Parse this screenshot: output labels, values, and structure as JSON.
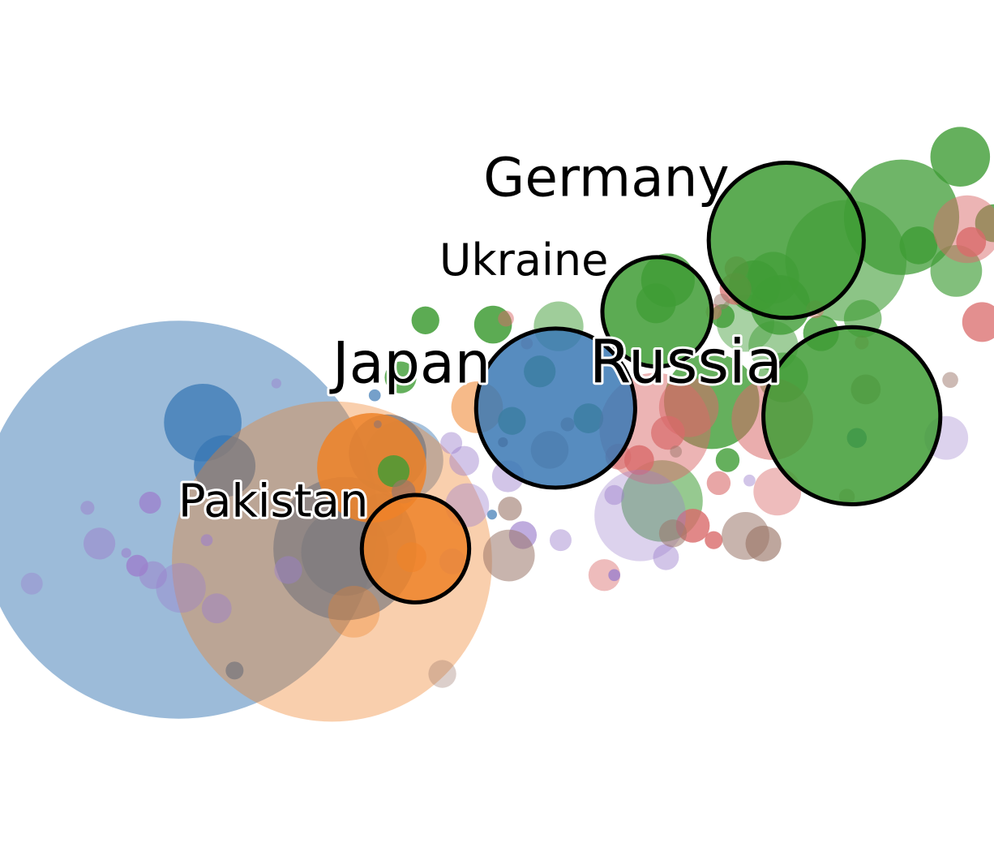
{
  "chart_data": {
    "type": "scatter",
    "title": "",
    "xlabel": "",
    "ylabel": "",
    "grid": false,
    "legend": "none",
    "colors": {
      "blue": "#3a78b4",
      "orange": "#ef8228",
      "green": "#3f9c35",
      "red": "#d96a6a",
      "purple": "#9c7fcc",
      "brown": "#9b7669"
    },
    "xlim": [
      0,
      100
    ],
    "ylim": [
      0,
      100
    ],
    "labels": [
      {
        "text": "Germany",
        "x": 61,
        "y": 77,
        "size": 66,
        "anchor": "middle"
      },
      {
        "text": "Ukraine",
        "x": 52.7,
        "y": 67.7,
        "size": 54,
        "anchor": "middle"
      },
      {
        "text": "Japan",
        "x": 41.4,
        "y": 55.1,
        "size": 70,
        "anchor": "middle"
      },
      {
        "text": "Russia",
        "x": 69,
        "y": 55.1,
        "size": 74,
        "anchor": "middle"
      },
      {
        "text": "Pakistan",
        "x": 27.5,
        "y": 39.4,
        "size": 56,
        "anchor": "middle"
      }
    ],
    "highlighted": [
      {
        "name": "Germany",
        "x": 79.1,
        "y": 71.8,
        "r": 7.8,
        "group": "green"
      },
      {
        "name": "Ukraine",
        "x": 66.1,
        "y": 63.4,
        "r": 5.5,
        "group": "green"
      },
      {
        "name": "Japan",
        "x": 55.9,
        "y": 52.1,
        "r": 8.0,
        "group": "blue"
      },
      {
        "name": "Russia",
        "x": 85.7,
        "y": 51.2,
        "r": 8.9,
        "group": "green"
      },
      {
        "name": "Pakistan",
        "x": 41.8,
        "y": 35.6,
        "r": 5.4,
        "group": "orange"
      }
    ],
    "series": [
      {
        "group": "blue",
        "points": [
          {
            "x": 18.0,
            "y": 39.0,
            "r": 20.0,
            "o": 0.5
          },
          {
            "x": 20.4,
            "y": 50.4,
            "r": 3.9,
            "o": 0.75
          },
          {
            "x": 22.6,
            "y": 45.3,
            "r": 3.1,
            "o": 0.8
          },
          {
            "x": 34.7,
            "y": 35.6,
            "r": 7.2,
            "o": 0.7
          },
          {
            "x": 40.6,
            "y": 46.0,
            "r": 4.0,
            "o": 0.45
          },
          {
            "x": 39.0,
            "y": 46.8,
            "r": 3.9,
            "o": 0.8
          },
          {
            "x": 34.7,
            "y": 35.2,
            "r": 4.4,
            "o": 0.75
          },
          {
            "x": 38.3,
            "y": 39.5,
            "r": 2.2,
            "o": 0.6
          },
          {
            "x": 23.6,
            "y": 21.3,
            "r": 0.9,
            "o": 0.8
          },
          {
            "x": 37.7,
            "y": 53.6,
            "r": 0.6,
            "o": 0.7
          },
          {
            "x": 49.5,
            "y": 39.6,
            "r": 0.5,
            "o": 0.7
          },
          {
            "x": 86.2,
            "y": 48.6,
            "r": 1.0,
            "o": 0.8
          }
        ]
      },
      {
        "group": "orange",
        "points": [
          {
            "x": 33.4,
            "y": 34.1,
            "r": 16.1,
            "o": 0.38
          },
          {
            "x": 37.4,
            "y": 45.1,
            "r": 5.5,
            "o": 0.85
          },
          {
            "x": 48.0,
            "y": 52.2,
            "r": 2.6,
            "o": 0.55
          },
          {
            "x": 35.6,
            "y": 28.2,
            "r": 2.6,
            "o": 0.35
          },
          {
            "x": 41.4,
            "y": 34.6,
            "r": 1.5,
            "o": 0.55
          }
        ]
      },
      {
        "group": "green",
        "points": [
          {
            "x": 96.6,
            "y": 81.6,
            "r": 3.0,
            "o": 0.8
          },
          {
            "x": 90.7,
            "y": 74.5,
            "r": 5.8,
            "o": 0.75
          },
          {
            "x": 85.1,
            "y": 69.4,
            "r": 6.1,
            "o": 0.6
          },
          {
            "x": 77.8,
            "y": 67.4,
            "r": 2.6,
            "o": 0.65
          },
          {
            "x": 75.9,
            "y": 66.4,
            "r": 2.6,
            "o": 0.8
          },
          {
            "x": 78.5,
            "y": 64.2,
            "r": 3.0,
            "o": 0.8
          },
          {
            "x": 75.0,
            "y": 62.1,
            "r": 2.9,
            "o": 0.45
          },
          {
            "x": 77.8,
            "y": 59.4,
            "r": 2.5,
            "o": 0.5
          },
          {
            "x": 78.8,
            "y": 55.7,
            "r": 2.5,
            "o": 0.6
          },
          {
            "x": 71.6,
            "y": 52.9,
            "r": 4.8,
            "o": 0.8
          },
          {
            "x": 67.2,
            "y": 67.1,
            "r": 2.7,
            "o": 0.8
          },
          {
            "x": 66.0,
            "y": 64.4,
            "r": 2.0,
            "o": 0.75
          },
          {
            "x": 66.6,
            "y": 41.2,
            "r": 4.1,
            "o": 0.55
          },
          {
            "x": 56.2,
            "y": 61.7,
            "r": 2.5,
            "o": 0.5
          },
          {
            "x": 49.6,
            "y": 61.9,
            "r": 1.9,
            "o": 0.85
          },
          {
            "x": 42.8,
            "y": 62.4,
            "r": 1.4,
            "o": 0.85
          },
          {
            "x": 40.3,
            "y": 55.7,
            "r": 1.6,
            "o": 0.8
          },
          {
            "x": 54.3,
            "y": 56.4,
            "r": 1.6,
            "o": 0.8
          },
          {
            "x": 51.5,
            "y": 50.6,
            "r": 1.4,
            "o": 0.8
          },
          {
            "x": 59.2,
            "y": 50.9,
            "r": 1.5,
            "o": 0.8
          },
          {
            "x": 39.6,
            "y": 44.7,
            "r": 1.6,
            "o": 0.8
          },
          {
            "x": 82.6,
            "y": 60.9,
            "r": 1.8,
            "o": 0.8
          },
          {
            "x": 86.8,
            "y": 62.6,
            "r": 1.9,
            "o": 0.6
          },
          {
            "x": 92.4,
            "y": 71.2,
            "r": 1.9,
            "o": 0.8
          },
          {
            "x": 96.2,
            "y": 68.2,
            "r": 2.6,
            "o": 0.65
          },
          {
            "x": 73.2,
            "y": 46.0,
            "r": 1.2,
            "o": 0.8
          },
          {
            "x": 72.7,
            "y": 62.9,
            "r": 1.2,
            "o": 0.8
          },
          {
            "x": 100.0,
            "y": 73.8,
            "r": 1.9,
            "o": 0.8
          }
        ]
      },
      {
        "group": "red",
        "points": [
          {
            "x": 97.3,
            "y": 73.1,
            "r": 3.4,
            "o": 0.5
          },
          {
            "x": 97.7,
            "y": 71.6,
            "r": 1.5,
            "o": 0.8
          },
          {
            "x": 98.8,
            "y": 62.2,
            "r": 2.0,
            "o": 0.75
          },
          {
            "x": 65.9,
            "y": 49.7,
            "r": 5.6,
            "o": 0.5
          },
          {
            "x": 69.3,
            "y": 52.2,
            "r": 3.0,
            "o": 0.55
          },
          {
            "x": 77.7,
            "y": 50.8,
            "r": 4.1,
            "o": 0.55
          },
          {
            "x": 67.2,
            "y": 49.2,
            "r": 1.7,
            "o": 0.7
          },
          {
            "x": 64.3,
            "y": 46.0,
            "r": 1.5,
            "o": 0.8
          },
          {
            "x": 78.2,
            "y": 42.3,
            "r": 2.4,
            "o": 0.45
          },
          {
            "x": 69.7,
            "y": 38.3,
            "r": 1.7,
            "o": 0.8
          },
          {
            "x": 72.3,
            "y": 43.3,
            "r": 1.2,
            "o": 0.6
          },
          {
            "x": 62.2,
            "y": 46.4,
            "r": 1.3,
            "o": 0.6
          },
          {
            "x": 74.1,
            "y": 68.5,
            "r": 1.2,
            "o": 0.6
          },
          {
            "x": 82.0,
            "y": 63.7,
            "r": 0.9,
            "o": 0.45
          },
          {
            "x": 86.7,
            "y": 59.8,
            "r": 0.7,
            "o": 0.45
          },
          {
            "x": 60.8,
            "y": 32.5,
            "r": 1.6,
            "o": 0.45
          },
          {
            "x": 71.8,
            "y": 36.6,
            "r": 0.9,
            "o": 0.8
          },
          {
            "x": 50.9,
            "y": 62.6,
            "r": 0.8,
            "o": 0.5
          },
          {
            "x": 53.0,
            "y": 59.7,
            "r": 0.6,
            "o": 0.5
          },
          {
            "x": 74.0,
            "y": 66.1,
            "r": 1.6,
            "o": 0.7
          },
          {
            "x": 71.8,
            "y": 63.4,
            "r": 0.8,
            "o": 0.5
          }
        ]
      },
      {
        "group": "purple",
        "points": [
          {
            "x": 64.4,
            "y": 39.5,
            "r": 4.6,
            "o": 0.35
          },
          {
            "x": 95.2,
            "y": 48.6,
            "r": 2.2,
            "o": 0.35
          },
          {
            "x": 47.0,
            "y": 40.7,
            "r": 2.2,
            "o": 0.4
          },
          {
            "x": 46.7,
            "y": 45.9,
            "r": 1.5,
            "o": 0.45
          },
          {
            "x": 51.1,
            "y": 44.1,
            "r": 1.6,
            "o": 0.45
          },
          {
            "x": 45.4,
            "y": 48.0,
            "r": 1.1,
            "o": 0.45
          },
          {
            "x": 52.6,
            "y": 37.2,
            "r": 1.4,
            "o": 0.65
          },
          {
            "x": 18.2,
            "y": 31.0,
            "r": 2.5,
            "o": 0.4
          },
          {
            "x": 15.4,
            "y": 32.5,
            "r": 1.4,
            "o": 0.5
          },
          {
            "x": 15.1,
            "y": 41.0,
            "r": 1.1,
            "o": 0.75
          },
          {
            "x": 13.8,
            "y": 33.6,
            "r": 1.1,
            "o": 0.8
          },
          {
            "x": 10.0,
            "y": 36.2,
            "r": 1.6,
            "o": 0.5
          },
          {
            "x": 3.2,
            "y": 31.5,
            "r": 1.1,
            "o": 0.4
          },
          {
            "x": 21.8,
            "y": 28.6,
            "r": 1.5,
            "o": 0.45
          },
          {
            "x": 45.5,
            "y": 34.1,
            "r": 1.3,
            "o": 0.45
          },
          {
            "x": 29.0,
            "y": 33.1,
            "r": 1.4,
            "o": 0.45
          },
          {
            "x": 56.4,
            "y": 36.6,
            "r": 1.1,
            "o": 0.45
          },
          {
            "x": 61.8,
            "y": 41.9,
            "r": 1.0,
            "o": 0.45
          },
          {
            "x": 67.0,
            "y": 34.6,
            "r": 1.3,
            "o": 0.45
          },
          {
            "x": 75.4,
            "y": 43.6,
            "r": 0.6,
            "o": 0.45
          },
          {
            "x": 61.8,
            "y": 32.5,
            "r": 0.6,
            "o": 0.8
          },
          {
            "x": 27.8,
            "y": 55.0,
            "r": 0.5,
            "o": 0.45
          },
          {
            "x": 8.8,
            "y": 40.4,
            "r": 0.7,
            "o": 0.5
          },
          {
            "x": 12.7,
            "y": 35.1,
            "r": 0.5,
            "o": 0.6
          },
          {
            "x": 20.8,
            "y": 36.6,
            "r": 0.6,
            "o": 0.6
          }
        ]
      },
      {
        "group": "brown",
        "points": [
          {
            "x": 51.2,
            "y": 34.8,
            "r": 2.6,
            "o": 0.55
          },
          {
            "x": 75.0,
            "y": 37.1,
            "r": 2.4,
            "o": 0.55
          },
          {
            "x": 76.8,
            "y": 36.2,
            "r": 1.8,
            "o": 0.65
          },
          {
            "x": 55.3,
            "y": 47.2,
            "r": 1.9,
            "o": 0.55
          },
          {
            "x": 51.3,
            "y": 40.3,
            "r": 1.2,
            "o": 0.6
          },
          {
            "x": 67.7,
            "y": 37.4,
            "r": 1.4,
            "o": 0.55
          },
          {
            "x": 40.6,
            "y": 42.3,
            "r": 1.2,
            "o": 0.7
          },
          {
            "x": 44.5,
            "y": 20.9,
            "r": 1.4,
            "o": 0.35
          },
          {
            "x": 85.2,
            "y": 41.7,
            "r": 0.8,
            "o": 0.5
          },
          {
            "x": 95.6,
            "y": 55.4,
            "r": 0.8,
            "o": 0.5
          },
          {
            "x": 72.6,
            "y": 64.6,
            "r": 0.8,
            "o": 0.5
          },
          {
            "x": 87.1,
            "y": 54.3,
            "r": 1.5,
            "o": 0.6
          },
          {
            "x": 57.1,
            "y": 50.2,
            "r": 0.7,
            "o": 0.7
          },
          {
            "x": 68.0,
            "y": 47.0,
            "r": 0.6,
            "o": 0.5
          },
          {
            "x": 38.0,
            "y": 50.2,
            "r": 0.4,
            "o": 0.7
          },
          {
            "x": 50.6,
            "y": 48.1,
            "r": 0.5,
            "o": 0.9
          }
        ]
      }
    ]
  }
}
